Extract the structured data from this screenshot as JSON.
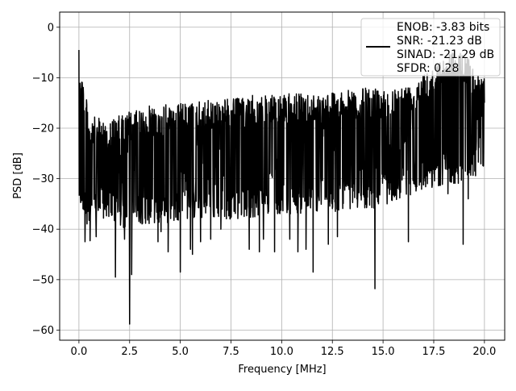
{
  "chart_data": {
    "type": "line",
    "title": "",
    "xlabel": "Frequency [MHz]",
    "ylabel": "PSD [dB]",
    "xlim": [
      -0.95,
      21.0
    ],
    "ylim": [
      -62,
      3
    ],
    "xticks": [
      0.0,
      2.5,
      5.0,
      7.5,
      10.0,
      12.5,
      15.0,
      17.5,
      20.0
    ],
    "xtick_labels": [
      "0.0",
      "2.5",
      "5.0",
      "7.5",
      "10.0",
      "12.5",
      "15.0",
      "17.5",
      "20.0"
    ],
    "yticks": [
      0,
      -10,
      -20,
      -30,
      -40,
      -50,
      -60
    ],
    "ytick_labels": [
      "0",
      "−10",
      "−20",
      "−30",
      "−40",
      "−50",
      "−60"
    ],
    "grid": true,
    "legend_position": "top-right",
    "legend_lines": [
      "ENOB: -3.83 bits",
      "SNR: -21.23 dB",
      "SINAD: -21.29 dB",
      "SFDR: 0.28"
    ],
    "series": [
      {
        "color": "#000000",
        "envelope": {
          "x": [
            0.0,
            0.5,
            1.0,
            1.5,
            2.0,
            2.5,
            3.0,
            3.5,
            4.0,
            4.5,
            5.0,
            5.5,
            6.0,
            6.5,
            7.0,
            7.5,
            8.0,
            8.5,
            9.0,
            9.5,
            10.0,
            10.5,
            11.0,
            11.5,
            12.0,
            12.5,
            13.0,
            13.5,
            14.0,
            14.5,
            15.0,
            15.5,
            16.0,
            16.5,
            17.0,
            17.5,
            18.0,
            18.5,
            19.0,
            19.5,
            20.0
          ],
          "upper": [
            -4.5,
            -17.5,
            -18,
            -18.5,
            -17.5,
            -16.5,
            -16.5,
            -15.5,
            -15.5,
            -15,
            -15,
            -15,
            -14.5,
            -14.5,
            -14,
            -14,
            -14,
            -13.5,
            -13.5,
            -13.5,
            -13.5,
            -13,
            -13,
            -13,
            -13,
            -12.5,
            -12.5,
            -12.5,
            -12,
            -12,
            -12,
            -12,
            -11.5,
            -11,
            -8,
            -8,
            -6,
            -4,
            -5,
            -8,
            -10
          ],
          "lower": [
            -35,
            -40,
            -38,
            -38,
            -40,
            -40,
            -39,
            -39,
            -39,
            -39,
            -38,
            -38,
            -38,
            -38,
            -38,
            -38,
            -38,
            -38,
            -37,
            -37,
            -37,
            -37,
            -37,
            -37,
            -36,
            -37,
            -36,
            -36,
            -36,
            -36,
            -35,
            -35,
            -34,
            -33,
            -32,
            -32,
            -31,
            -31,
            -31,
            -30,
            -27
          ]
        },
        "dips": [
          {
            "x": 0.3,
            "y": -42.5
          },
          {
            "x": 0.55,
            "y": -42.3
          },
          {
            "x": 0.85,
            "y": -41.5
          },
          {
            "x": 1.8,
            "y": -49.5
          },
          {
            "x": 2.25,
            "y": -42
          },
          {
            "x": 2.5,
            "y": -58.8
          },
          {
            "x": 2.6,
            "y": -49
          },
          {
            "x": 3.9,
            "y": -42.5
          },
          {
            "x": 4.05,
            "y": -40.5
          },
          {
            "x": 4.4,
            "y": -44.5
          },
          {
            "x": 5.0,
            "y": -48.5
          },
          {
            "x": 5.5,
            "y": -44
          },
          {
            "x": 5.6,
            "y": -45
          },
          {
            "x": 6.0,
            "y": -42.5
          },
          {
            "x": 6.5,
            "y": -42
          },
          {
            "x": 7.0,
            "y": -40
          },
          {
            "x": 8.4,
            "y": -44
          },
          {
            "x": 8.9,
            "y": -44.5
          },
          {
            "x": 9.1,
            "y": -42
          },
          {
            "x": 9.65,
            "y": -44.5
          },
          {
            "x": 10.4,
            "y": -42
          },
          {
            "x": 10.8,
            "y": -44.5
          },
          {
            "x": 11.2,
            "y": -44
          },
          {
            "x": 11.55,
            "y": -48.5
          },
          {
            "x": 12.3,
            "y": -43
          },
          {
            "x": 12.75,
            "y": -41.5
          },
          {
            "x": 14.6,
            "y": -51.8
          },
          {
            "x": 16.25,
            "y": -42.5
          },
          {
            "x": 18.2,
            "y": -33
          },
          {
            "x": 18.95,
            "y": -43
          },
          {
            "x": 19.2,
            "y": -34
          },
          {
            "x": 19.95,
            "y": -27.5
          }
        ]
      }
    ]
  }
}
